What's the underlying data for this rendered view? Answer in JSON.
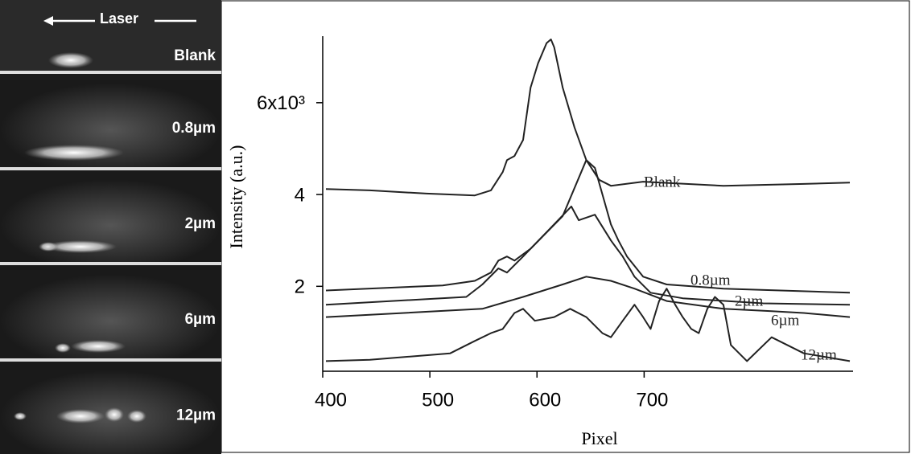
{
  "image_panel": {
    "header": "Laser",
    "labels": [
      "Blank",
      "0.8µm",
      "2µm",
      "6µm",
      "12µm"
    ]
  },
  "chart_data": {
    "type": "line",
    "xlabel": "Pixel",
    "ylabel": "Intensity (a.u.)",
    "xlim": [
      400,
      895
    ],
    "xticks": [
      400,
      500,
      600,
      700
    ],
    "ylim": [
      0.15,
      7.45
    ],
    "yticks": [
      2,
      4,
      {
        "value": 6,
        "label": "6x10³"
      }
    ],
    "color": "#222222",
    "series": [
      {
        "name": "Blank",
        "x": [
          403,
          444,
          497,
          542,
          557,
          568,
          572,
          579,
          587,
          594,
          601,
          609,
          613,
          616,
          624,
          635,
          646,
          658,
          669,
          699,
          774,
          849,
          892
        ],
        "values": [
          4.12,
          4.09,
          4.02,
          3.98,
          4.09,
          4.49,
          4.75,
          4.84,
          5.19,
          6.33,
          6.86,
          7.3,
          7.38,
          7.21,
          6.33,
          5.46,
          4.75,
          4.32,
          4.19,
          4.28,
          4.19,
          4.23,
          4.26
        ]
      },
      {
        "name": "0.8µm",
        "x": [
          403,
          512,
          542,
          557,
          564,
          572,
          579,
          594,
          624,
          646,
          654,
          669,
          676,
          684,
          699,
          721,
          774,
          892
        ],
        "values": [
          1.91,
          2.02,
          2.12,
          2.3,
          2.56,
          2.65,
          2.56,
          2.82,
          3.53,
          4.75,
          4.58,
          3.35,
          3.0,
          2.65,
          2.21,
          2.04,
          1.95,
          1.86
        ]
      },
      {
        "name": "2µm",
        "x": [
          403,
          534,
          549,
          564,
          572,
          587,
          609,
          632,
          639,
          654,
          669,
          680,
          691,
          706,
          736,
          811,
          892
        ],
        "values": [
          1.6,
          1.77,
          2.04,
          2.39,
          2.3,
          2.65,
          3.18,
          3.74,
          3.44,
          3.56,
          3.0,
          2.65,
          2.21,
          1.86,
          1.74,
          1.63,
          1.6
        ]
      },
      {
        "name": "6µm",
        "x": [
          403,
          549,
          587,
          624,
          646,
          669,
          691,
          721,
          774,
          819,
          849,
          892
        ],
        "values": [
          1.33,
          1.51,
          1.77,
          2.04,
          2.21,
          2.12,
          1.95,
          1.68,
          1.51,
          1.46,
          1.42,
          1.33
        ]
      },
      {
        "name": "12µm",
        "x": [
          403,
          444,
          519,
          542,
          557,
          568,
          579,
          587,
          598,
          616,
          631,
          646,
          661,
          669,
          680,
          691,
          699,
          706,
          714,
          721,
          729,
          736,
          744,
          751,
          759,
          766,
          774,
          781,
          796,
          819,
          849,
          892
        ],
        "values": [
          0.37,
          0.4,
          0.54,
          0.81,
          0.98,
          1.07,
          1.42,
          1.51,
          1.25,
          1.33,
          1.51,
          1.33,
          0.98,
          0.89,
          1.25,
          1.6,
          1.33,
          1.07,
          1.68,
          1.95,
          1.6,
          1.33,
          1.07,
          0.98,
          1.51,
          1.77,
          1.6,
          0.72,
          0.37,
          0.89,
          0.54,
          0.37
        ]
      }
    ]
  }
}
